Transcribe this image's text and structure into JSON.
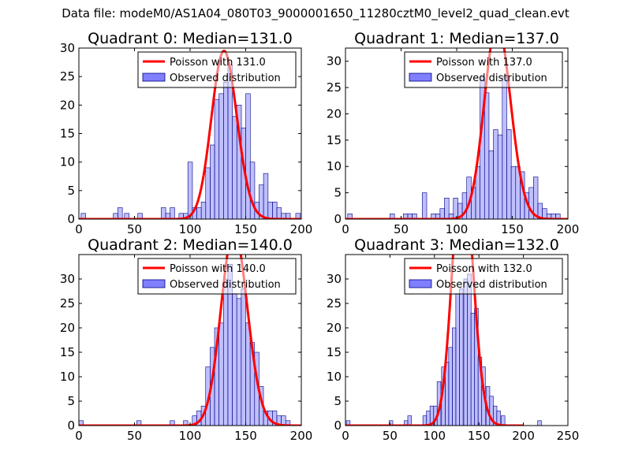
{
  "figure": {
    "suptitle": "Data file: modeM0/AS1A04_080T03_9000001650_11280cztM0_level2_quad_clean.evt",
    "poisson_color": "#ff0000",
    "hist_color": "#7f7fff",
    "hist_edge": "#00007f"
  },
  "chart_data": [
    {
      "type": "bar",
      "panel": "top-left",
      "title": "Quadrant 0: Median=131.0",
      "xlim": [
        0,
        200
      ],
      "ylim": [
        0,
        30
      ],
      "xticks": [
        "0",
        "50",
        "100",
        "150",
        "200"
      ],
      "yticks": [
        "0",
        "5",
        "10",
        "15",
        "20",
        "25",
        "30"
      ],
      "bin_width": 4.11,
      "legend": {
        "position": "top-right",
        "line": "Poisson with 131.0",
        "bar": "Observed distribution"
      },
      "poisson_mean": 131.0,
      "poisson_total": 206,
      "bins": [
        [
          2,
          1
        ],
        [
          31,
          1
        ],
        [
          35,
          2
        ],
        [
          41,
          1
        ],
        [
          53,
          1
        ],
        [
          74,
          2
        ],
        [
          78,
          1
        ],
        [
          82,
          2
        ],
        [
          90,
          1
        ],
        [
          94,
          1
        ],
        [
          98,
          10
        ],
        [
          102,
          2
        ],
        [
          106,
          2
        ],
        [
          110,
          3
        ],
        [
          114,
          9
        ],
        [
          118,
          13
        ],
        [
          122,
          21
        ],
        [
          126,
          22
        ],
        [
          130,
          24
        ],
        [
          134,
          27
        ],
        [
          138,
          18
        ],
        [
          142,
          20
        ],
        [
          146,
          16
        ],
        [
          150,
          22
        ],
        [
          154,
          10
        ],
        [
          158,
          3
        ],
        [
          162,
          6
        ],
        [
          166,
          8
        ],
        [
          170,
          3
        ],
        [
          174,
          3
        ],
        [
          178,
          2
        ],
        [
          182,
          1
        ],
        [
          186,
          1
        ],
        [
          195,
          1
        ]
      ]
    },
    {
      "type": "bar",
      "panel": "top-right",
      "title": "Quadrant 1: Median=137.0",
      "xlim": [
        0,
        200
      ],
      "ylim": [
        0,
        32.5
      ],
      "xticks": [
        "0",
        "50",
        "100",
        "150",
        "200"
      ],
      "yticks": [
        "0",
        "5",
        "10",
        "15",
        "20",
        "25",
        "30"
      ],
      "bin_width": 4.05,
      "legend": {
        "position": "top-right",
        "line": "Poisson with 137.0",
        "bar": "Observed distribution"
      },
      "poisson_mean": 137.0,
      "poisson_total": 270,
      "bins": [
        [
          2,
          1
        ],
        [
          40,
          1
        ],
        [
          52,
          1
        ],
        [
          56,
          1
        ],
        [
          60,
          1
        ],
        [
          69,
          5
        ],
        [
          77,
          1
        ],
        [
          81,
          1
        ],
        [
          85,
          2
        ],
        [
          89,
          4
        ],
        [
          93,
          1
        ],
        [
          97,
          4
        ],
        [
          101,
          3
        ],
        [
          105,
          5
        ],
        [
          109,
          8
        ],
        [
          113,
          6
        ],
        [
          117,
          10
        ],
        [
          121,
          27
        ],
        [
          125,
          24
        ],
        [
          129,
          13
        ],
        [
          133,
          17
        ],
        [
          137,
          16
        ],
        [
          141,
          27
        ],
        [
          145,
          17
        ],
        [
          149,
          10
        ],
        [
          153,
          10
        ],
        [
          157,
          9
        ],
        [
          161,
          5
        ],
        [
          165,
          6
        ],
        [
          169,
          8
        ],
        [
          173,
          3
        ],
        [
          177,
          2
        ],
        [
          181,
          1
        ],
        [
          185,
          1
        ],
        [
          189,
          1
        ]
      ]
    },
    {
      "type": "bar",
      "panel": "bottom-left",
      "title": "Quadrant 2: Median=140.0",
      "xlim": [
        0,
        200
      ],
      "ylim": [
        0,
        35
      ],
      "xticks": [
        "0",
        "50",
        "100",
        "150",
        "200"
      ],
      "yticks": [
        "0",
        "5",
        "10",
        "15",
        "20",
        "25",
        "30"
      ],
      "bin_width": 3.98,
      "legend": {
        "position": "top-right",
        "line": "Poisson with 140.0",
        "bar": "Observed distribution"
      },
      "poisson_mean": 140.0,
      "poisson_total": 297,
      "bins": [
        [
          0,
          1
        ],
        [
          52,
          1
        ],
        [
          82,
          1
        ],
        [
          94,
          1
        ],
        [
          102,
          2
        ],
        [
          106,
          3
        ],
        [
          110,
          4
        ],
        [
          114,
          12
        ],
        [
          118,
          16
        ],
        [
          122,
          20
        ],
        [
          126,
          21
        ],
        [
          130,
          30
        ],
        [
          134,
          33
        ],
        [
          138,
          27
        ],
        [
          142,
          26
        ],
        [
          146,
          28
        ],
        [
          150,
          21
        ],
        [
          154,
          17
        ],
        [
          158,
          15
        ],
        [
          162,
          8
        ],
        [
          166,
          3
        ],
        [
          170,
          3
        ],
        [
          174,
          3
        ],
        [
          178,
          2
        ],
        [
          182,
          2
        ],
        [
          186,
          1
        ]
      ]
    },
    {
      "type": "bar",
      "panel": "bottom-right",
      "title": "Quadrant 3: Median=132.0",
      "xlim": [
        0,
        250
      ],
      "ylim": [
        0,
        35
      ],
      "xticks": [
        "0",
        "50",
        "100",
        "150",
        "200",
        "250"
      ],
      "yticks": [
        "0",
        "5",
        "10",
        "15",
        "20",
        "25",
        "30"
      ],
      "bin_width": 4.2,
      "legend": {
        "position": "top-right",
        "line": "Poisson with 132.0",
        "bar": "Observed distribution"
      },
      "poisson_mean": 132.0,
      "poisson_total": 370,
      "bins": [
        [
          1,
          1
        ],
        [
          49,
          1
        ],
        [
          66,
          1
        ],
        [
          70,
          2
        ],
        [
          87,
          2
        ],
        [
          91,
          3
        ],
        [
          95,
          4
        ],
        [
          99,
          4
        ],
        [
          103,
          9
        ],
        [
          108,
          12
        ],
        [
          112,
          13
        ],
        [
          116,
          16
        ],
        [
          120,
          20
        ],
        [
          124,
          27
        ],
        [
          128,
          28
        ],
        [
          133,
          30
        ],
        [
          137,
          31
        ],
        [
          141,
          23
        ],
        [
          145,
          24
        ],
        [
          149,
          14
        ],
        [
          153,
          12
        ],
        [
          158,
          8
        ],
        [
          162,
          6
        ],
        [
          166,
          4
        ],
        [
          170,
          3
        ],
        [
          175,
          2
        ],
        [
          216,
          1
        ]
      ]
    }
  ]
}
